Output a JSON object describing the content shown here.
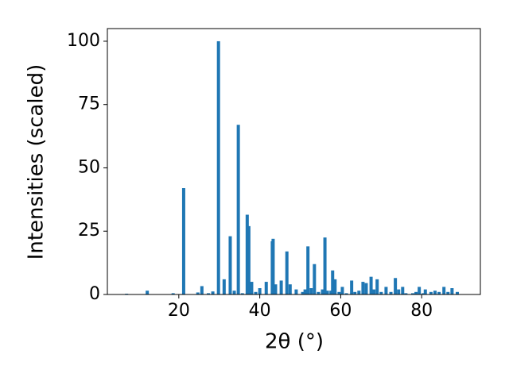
{
  "chart_data": {
    "type": "bar",
    "xlabel": "2θ (°)",
    "ylabel": "Intensities (scaled)",
    "color": "#1f77b4",
    "x": [
      7.1,
      12.2,
      18.6,
      21.2,
      24.7,
      25.7,
      27.3,
      28.4,
      29.8,
      31.2,
      32.7,
      33.7,
      34.7,
      35.7,
      36.9,
      37.3,
      38.0,
      39.0,
      40.0,
      41.6,
      43.1,
      43.3,
      43.9,
      45.3,
      46.7,
      47.5,
      49.0,
      50.6,
      51.2,
      51.9,
      52.7,
      53.5,
      54.5,
      55.5,
      56.1,
      56.7,
      57.6,
      58.0,
      58.6,
      59.6,
      60.4,
      61.4,
      62.7,
      63.5,
      64.5,
      65.5,
      66.3,
      67.5,
      68.2,
      69.0,
      70.0,
      71.2,
      72.4,
      73.5,
      74.3,
      75.3,
      76.1,
      77.8,
      78.6,
      79.4,
      80.4,
      80.9,
      82.3,
      83.3,
      84.3,
      85.5,
      86.5,
      87.5,
      88.8
    ],
    "values": [
      0.3,
      1.5,
      0.5,
      42,
      0.8,
      3.3,
      0.5,
      1.2,
      100,
      6,
      23,
      1.5,
      67,
      0.5,
      31.5,
      27,
      5,
      1,
      2.5,
      5,
      21,
      22,
      4,
      5.5,
      17,
      4,
      2,
      1,
      2,
      19,
      2.5,
      12,
      1,
      2,
      22.5,
      1.5,
      1.5,
      9.5,
      6,
      1,
      3,
      0.5,
      5.5,
      1,
      1.5,
      5,
      4.5,
      7,
      2,
      6,
      1,
      3,
      1,
      6.5,
      2,
      3,
      0.5,
      0.5,
      1,
      3,
      0.5,
      2,
      1,
      1.5,
      1,
      3,
      1,
      2.5,
      1
    ],
    "xlim": [
      2.35,
      94.5
    ],
    "ylim": [
      0,
      105
    ],
    "xticks": [
      20,
      40,
      60,
      80
    ],
    "yticks": [
      0,
      25,
      50,
      75,
      100
    ]
  }
}
